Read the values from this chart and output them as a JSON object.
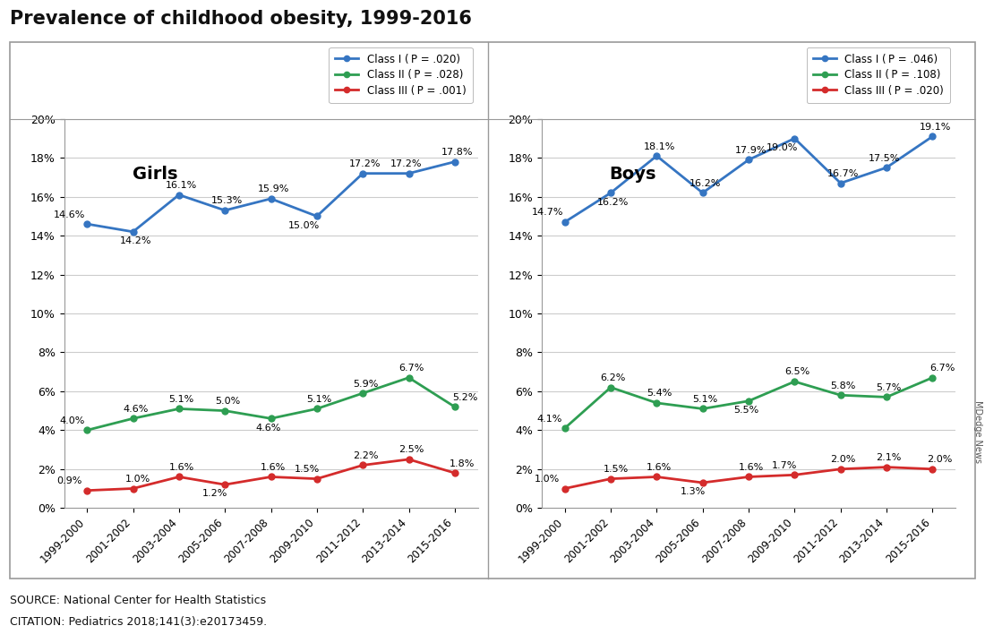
{
  "title": "Prevalence of childhood obesity, 1999-2016",
  "x_labels": [
    "1999-2000",
    "2001-2002",
    "2003-2004",
    "2005-2006",
    "2007-2008",
    "2009-2010",
    "2011-2012",
    "2013-2014",
    "2015-2016"
  ],
  "girls": {
    "title": "Girls",
    "class1": {
      "values": [
        14.6,
        14.2,
        16.1,
        15.3,
        15.9,
        15.0,
        17.2,
        17.2,
        17.8
      ],
      "label": "Class I ( ​P = .020)",
      "color": "#3575c2"
    },
    "class2": {
      "values": [
        4.0,
        4.6,
        5.1,
        5.0,
        4.6,
        5.1,
        5.9,
        6.7,
        5.2
      ],
      "label": "Class II ( ​P = .028)",
      "color": "#2e9e52"
    },
    "class3": {
      "values": [
        0.9,
        1.0,
        1.6,
        1.2,
        1.6,
        1.5,
        2.2,
        2.5,
        1.8
      ],
      "label": "Class III ( ​P = .001)",
      "color": "#d42b2b"
    }
  },
  "boys": {
    "title": "Boys",
    "class1": {
      "values": [
        14.7,
        16.2,
        18.1,
        16.2,
        17.9,
        19.0,
        16.7,
        17.5,
        19.1
      ],
      "label": "Class I ( ​P = .046)",
      "color": "#3575c2"
    },
    "class2": {
      "values": [
        4.1,
        6.2,
        5.4,
        5.1,
        5.5,
        6.5,
        5.8,
        5.7,
        6.7
      ],
      "label": "Class II ( ​P = .108)",
      "color": "#2e9e52"
    },
    "class3": {
      "values": [
        1.0,
        1.5,
        1.6,
        1.3,
        1.6,
        1.7,
        2.0,
        2.1,
        2.0
      ],
      "label": "Class III ( ​P = .020)",
      "color": "#d42b2b"
    }
  },
  "ylim": [
    0,
    20
  ],
  "yticks": [
    0,
    2,
    4,
    6,
    8,
    10,
    12,
    14,
    16,
    18,
    20
  ],
  "source_text": "SOURCE: National Center for Health Statistics",
  "citation_text": "CITATION: Pediatrics 2018;141(3):e20173459.",
  "mdedge_text": "MDedge News",
  "bg_color": "#ffffff",
  "panel_bg": "#ffffff",
  "grid_color": "#cccccc",
  "border_color": "#999999",
  "outer_border_color": "#999999"
}
